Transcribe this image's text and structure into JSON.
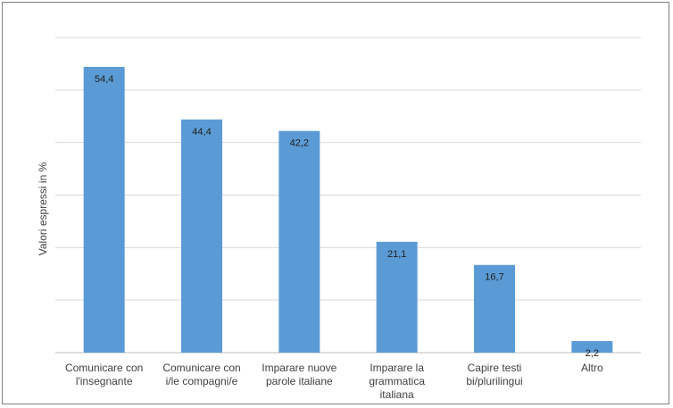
{
  "chart_data": {
    "type": "bar",
    "title": "",
    "xlabel": "",
    "ylabel": "Valori espressi in %",
    "categories": [
      [
        "Comunicare con",
        "l'insegnante"
      ],
      [
        "Comunicare con",
        "i/le compagni/e"
      ],
      [
        "Imparare nuove",
        "parole italiane"
      ],
      [
        "Imparare la",
        "grammatica",
        "italiana"
      ],
      [
        "Capire testi",
        "bi/plurilingui"
      ],
      [
        "Altro"
      ]
    ],
    "values": [
      54.4,
      44.4,
      42.2,
      21.1,
      16.7,
      2.2
    ],
    "value_labels": [
      "54,4",
      "44,4",
      "42,2",
      "21,1",
      "16,7",
      "2,2"
    ],
    "ylim": [
      0,
      60
    ],
    "grid": true,
    "bar_color": "#5b9bd5",
    "grid_color": "#d9d9d9"
  }
}
